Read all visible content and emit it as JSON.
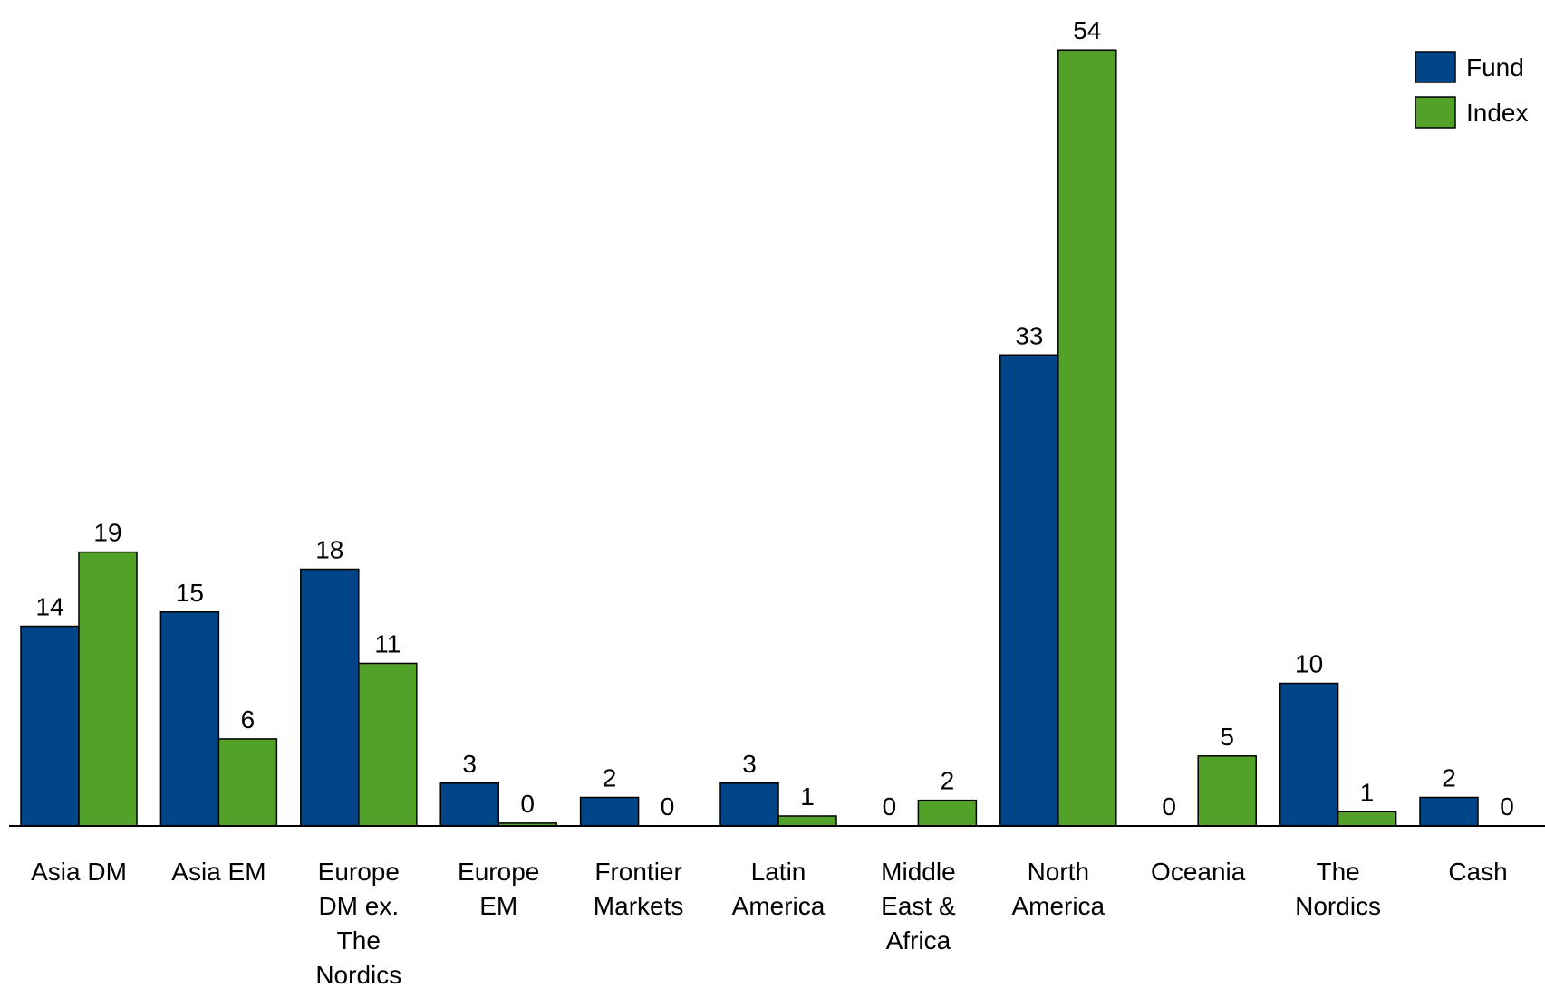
{
  "chart_data": {
    "type": "bar",
    "categories": [
      [
        "Asia DM"
      ],
      [
        "Asia EM"
      ],
      [
        "Europe",
        "DM ex.",
        "The",
        "Nordics"
      ],
      [
        "Europe",
        "EM"
      ],
      [
        "Frontier",
        "Markets"
      ],
      [
        "Latin",
        "America"
      ],
      [
        "Middle",
        "East &",
        "Africa"
      ],
      [
        "North",
        "America"
      ],
      [
        "Oceania"
      ],
      [
        "The",
        "Nordics"
      ],
      [
        "Cash"
      ]
    ],
    "series": [
      {
        "name": "Fund",
        "color": "#004587",
        "values": [
          14,
          15,
          18,
          3,
          2,
          3,
          0,
          33,
          0,
          10,
          2
        ],
        "display_values": [
          14,
          15,
          18,
          3,
          2,
          3,
          0,
          33,
          0,
          10,
          2
        ]
      },
      {
        "name": "Index",
        "color": "#52A128",
        "values": [
          19.2,
          6.1,
          11.4,
          0.2,
          0,
          0.7,
          1.8,
          54.4,
          4.9,
          1,
          0
        ],
        "display_values": [
          19,
          6,
          11,
          0,
          0,
          1,
          2,
          54,
          5,
          1,
          0
        ]
      }
    ],
    "title": "",
    "xlabel": "",
    "ylabel": "",
    "ylim": [
      0,
      55
    ],
    "grid": false,
    "legend": "top-right"
  }
}
